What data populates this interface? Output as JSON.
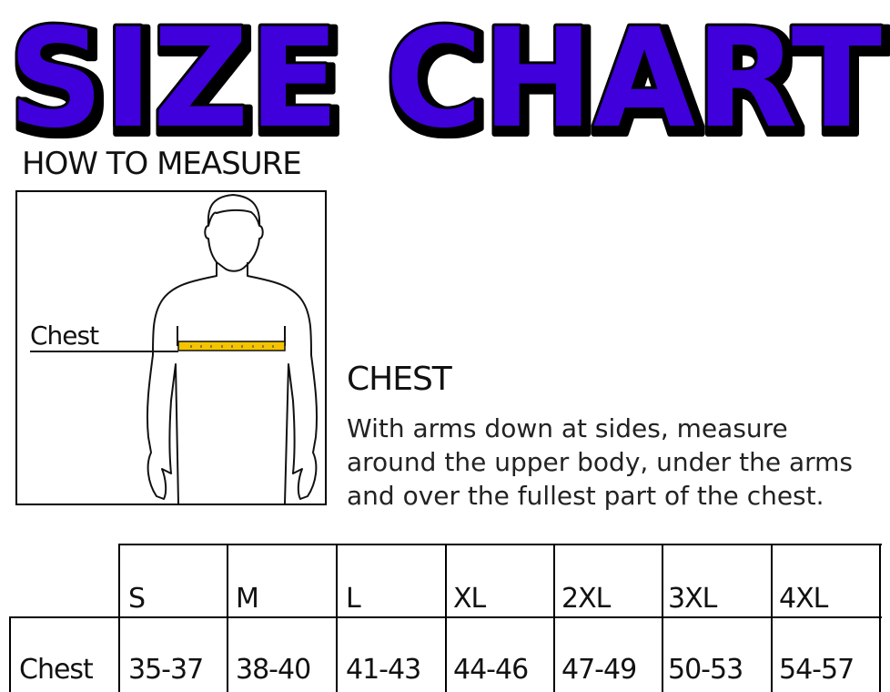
{
  "title": "SIZE CHART",
  "title_colors": {
    "fill": "#3f00dc",
    "outline": "#000000"
  },
  "how_to_measure": {
    "heading": "HOW TO MEASURE",
    "figure_label": "Chest",
    "tape_color": "#f5c400"
  },
  "chest_section": {
    "heading": "CHEST",
    "lines": [
      "With arms down at sides, measure",
      "around the upper body, under the arms",
      "and over the fullest part of the chest."
    ]
  },
  "size_table": {
    "headers": [
      "S",
      "M",
      "L",
      "XL",
      "2XL",
      "3XL",
      "4XL"
    ],
    "rows": [
      {
        "label": "Chest",
        "values": [
          "35-37",
          "38-40",
          "41-43",
          "44-46",
          "47-49",
          "50-53",
          "54-57"
        ]
      }
    ]
  }
}
